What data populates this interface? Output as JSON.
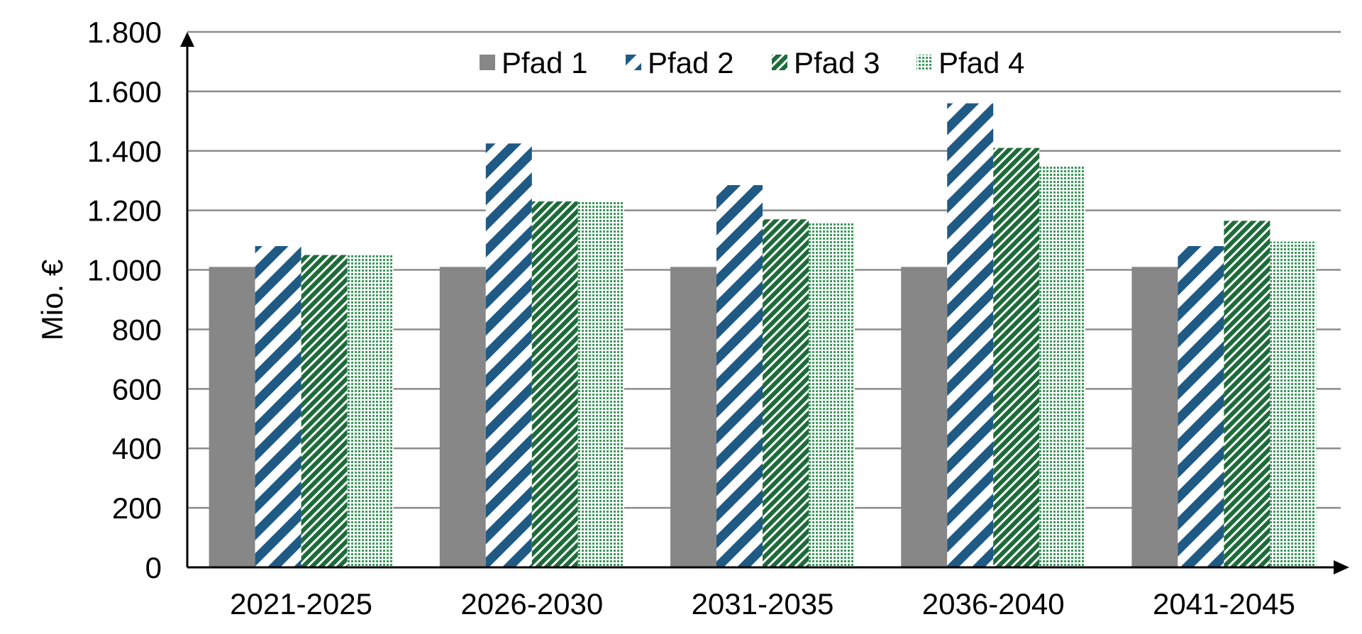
{
  "chart_data": {
    "type": "bar",
    "title": "",
    "xlabel": "",
    "ylabel": "Mio. €",
    "ylim": [
      0,
      1800
    ],
    "yticks": [
      0,
      200,
      400,
      600,
      800,
      1000,
      1200,
      1400,
      1600,
      1800
    ],
    "ytick_labels": [
      "0",
      "200",
      "400",
      "600",
      "800",
      "1.000",
      "1.200",
      "1.400",
      "1.600",
      "1.800"
    ],
    "categories": [
      "2021-2025",
      "2026-2030",
      "2031-2035",
      "2036-2040",
      "2041-2045"
    ],
    "series": [
      {
        "name": "Pfad 1",
        "values": [
          1010,
          1010,
          1010,
          1010,
          1010
        ],
        "color": "#878787",
        "pattern": "solid"
      },
      {
        "name": "Pfad 2",
        "values": [
          1080,
          1425,
          1285,
          1560,
          1080
        ],
        "color": "#1f5a84",
        "pattern": "diagonal-stripes"
      },
      {
        "name": "Pfad 3",
        "values": [
          1050,
          1230,
          1170,
          1410,
          1165
        ],
        "color": "#1e6b3a",
        "pattern": "dense-diagonal"
      },
      {
        "name": "Pfad 4",
        "values": [
          1050,
          1230,
          1160,
          1350,
          1095
        ],
        "color": "#3c9a5c",
        "pattern": "dotted"
      }
    ],
    "grid": true,
    "legend": "top-center"
  }
}
